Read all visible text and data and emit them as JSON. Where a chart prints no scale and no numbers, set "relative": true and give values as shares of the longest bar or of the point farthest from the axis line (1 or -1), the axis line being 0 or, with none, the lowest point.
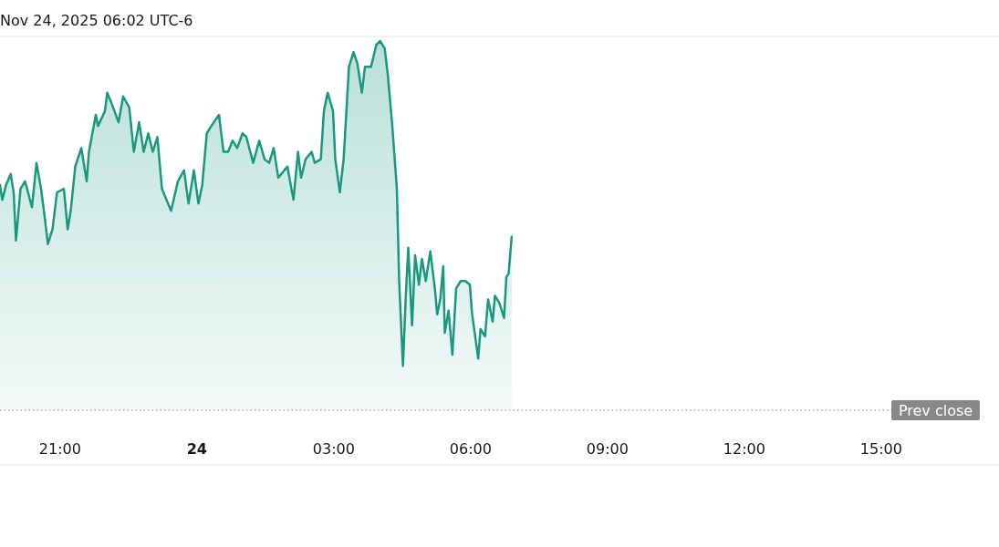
{
  "chart_data": {
    "type": "area",
    "title": "Nov 24, 2025 06:02 UTC-6",
    "relative": true,
    "xlim": [
      "2025-11-23T19:41",
      "2025-11-24T17:11"
    ],
    "xticks": [
      {
        "value": "2025-11-23T21:00",
        "label": "21:00"
      },
      {
        "value": "2025-11-24T00:00",
        "label": "24"
      },
      {
        "value": "2025-11-24T03:00",
        "label": "03:00"
      },
      {
        "value": "2025-11-24T06:00",
        "label": "06:00"
      },
      {
        "value": "2025-11-24T09:00",
        "label": "09:00"
      },
      {
        "value": "2025-11-24T12:00",
        "label": "12:00"
      },
      {
        "value": "2025-11-24T15:00",
        "label": "15:00"
      }
    ],
    "x": [
      "2025-11-23T19:41",
      "2025-11-23T19:44",
      "2025-11-23T19:49",
      "2025-11-23T19:55",
      "2025-11-23T19:59",
      "2025-11-23T20:02",
      "2025-11-23T20:08",
      "2025-11-23T20:14",
      "2025-11-23T20:23",
      "2025-11-23T20:29",
      "2025-11-23T20:35",
      "2025-11-23T20:40",
      "2025-11-23T20:44",
      "2025-11-23T20:50",
      "2025-11-23T20:56",
      "2025-11-23T21:05",
      "2025-11-23T21:10",
      "2025-11-23T21:14",
      "2025-11-23T21:20",
      "2025-11-23T21:28",
      "2025-11-23T21:35",
      "2025-11-23T21:38",
      "2025-11-23T21:47",
      "2025-11-23T21:50",
      "2025-11-23T21:59",
      "2025-11-23T22:02",
      "2025-11-23T22:08",
      "2025-11-23T22:17",
      "2025-11-23T22:23",
      "2025-11-23T22:31",
      "2025-11-23T22:37",
      "2025-11-23T22:44",
      "2025-11-23T22:50",
      "2025-11-23T22:56",
      "2025-11-23T23:02",
      "2025-11-23T23:08",
      "2025-11-23T23:14",
      "2025-11-23T23:26",
      "2025-11-23T23:35",
      "2025-11-23T23:43",
      "2025-11-23T23:49",
      "2025-11-23T23:56",
      "2025-11-24T00:02",
      "2025-11-24T00:07",
      "2025-11-24T00:13",
      "2025-11-24T00:19",
      "2025-11-24T00:29",
      "2025-11-24T00:35",
      "2025-11-24T00:41",
      "2025-11-24T00:47",
      "2025-11-24T00:53",
      "2025-11-24T01:00",
      "2025-11-24T01:05",
      "2025-11-24T01:14",
      "2025-11-24T01:22",
      "2025-11-24T01:29",
      "2025-11-24T01:35",
      "2025-11-24T01:41",
      "2025-11-24T01:47",
      "2025-11-24T01:59",
      "2025-11-24T02:07",
      "2025-11-24T02:13",
      "2025-11-24T02:17",
      "2025-11-24T02:23",
      "2025-11-24T02:31",
      "2025-11-24T02:35",
      "2025-11-24T02:43",
      "2025-11-24T02:47",
      "2025-11-24T02:52",
      "2025-11-24T02:59",
      "2025-11-24T03:02",
      "2025-11-24T03:08",
      "2025-11-24T03:13",
      "2025-11-24T03:20",
      "2025-11-24T03:26",
      "2025-11-24T03:31",
      "2025-11-24T03:37",
      "2025-11-24T03:41",
      "2025-11-24T03:49",
      "2025-11-24T03:56",
      "2025-11-24T04:01",
      "2025-11-24T04:07",
      "2025-11-24T04:11",
      "2025-11-24T04:17",
      "2025-11-24T04:23",
      "2025-11-24T04:26",
      "2025-11-24T04:31",
      "2025-11-24T04:35",
      "2025-11-24T04:38",
      "2025-11-24T04:43",
      "2025-11-24T04:47",
      "2025-11-24T04:52",
      "2025-11-24T04:56",
      "2025-11-24T05:01",
      "2025-11-24T05:07",
      "2025-11-24T05:13",
      "2025-11-24T05:16",
      "2025-11-24T05:20",
      "2025-11-24T05:24",
      "2025-11-24T05:26",
      "2025-11-24T05:31",
      "2025-11-24T05:36",
      "2025-11-24T05:41",
      "2025-11-24T05:47",
      "2025-11-24T05:53",
      "2025-11-24T05:59",
      "2025-11-24T06:02",
      "2025-11-24T06:10",
      "2025-11-24T06:13",
      "2025-11-24T06:19",
      "2025-11-24T06:23",
      "2025-11-24T06:29",
      "2025-11-24T06:32",
      "2025-11-24T06:38",
      "2025-11-24T06:44",
      "2025-11-24T06:47",
      "2025-11-24T06:50",
      "2025-11-24T06:54"
    ],
    "series": [
      {
        "color": "#18997f",
        "values": [
          0.61,
          0.57,
          0.61,
          0.64,
          0.59,
          0.46,
          0.6,
          0.62,
          0.55,
          0.67,
          0.6,
          0.52,
          0.45,
          0.49,
          0.59,
          0.6,
          0.49,
          0.54,
          0.66,
          0.71,
          0.62,
          0.7,
          0.8,
          0.77,
          0.81,
          0.86,
          0.83,
          0.78,
          0.85,
          0.82,
          0.7,
          0.78,
          0.7,
          0.75,
          0.7,
          0.74,
          0.6,
          0.54,
          0.62,
          0.65,
          0.56,
          0.65,
          0.56,
          0.61,
          0.75,
          0.77,
          0.8,
          0.7,
          0.7,
          0.73,
          0.71,
          0.75,
          0.74,
          0.67,
          0.73,
          0.68,
          0.67,
          0.71,
          0.63,
          0.66,
          0.57,
          0.7,
          0.63,
          0.68,
          0.7,
          0.67,
          0.68,
          0.81,
          0.86,
          0.81,
          0.68,
          0.59,
          0.68,
          0.93,
          0.97,
          0.94,
          0.86,
          0.93,
          0.93,
          0.99,
          1.0,
          0.98,
          0.91,
          0.77,
          0.6,
          0.35,
          0.12,
          0.32,
          0.44,
          0.23,
          0.42,
          0.34,
          0.41,
          0.35,
          0.43,
          0.33,
          0.26,
          0.3,
          0.39,
          0.21,
          0.27,
          0.15,
          0.33,
          0.35,
          0.35,
          0.34,
          0.26,
          0.14,
          0.22,
          0.2,
          0.3,
          0.24,
          0.31,
          0.29,
          0.25,
          0.36,
          0.37,
          0.47
        ]
      }
    ],
    "ref_lines": [
      {
        "axis": "y",
        "value": 0,
        "label": "Prev close",
        "line_style": "dotted",
        "color": "#888888"
      }
    ]
  }
}
